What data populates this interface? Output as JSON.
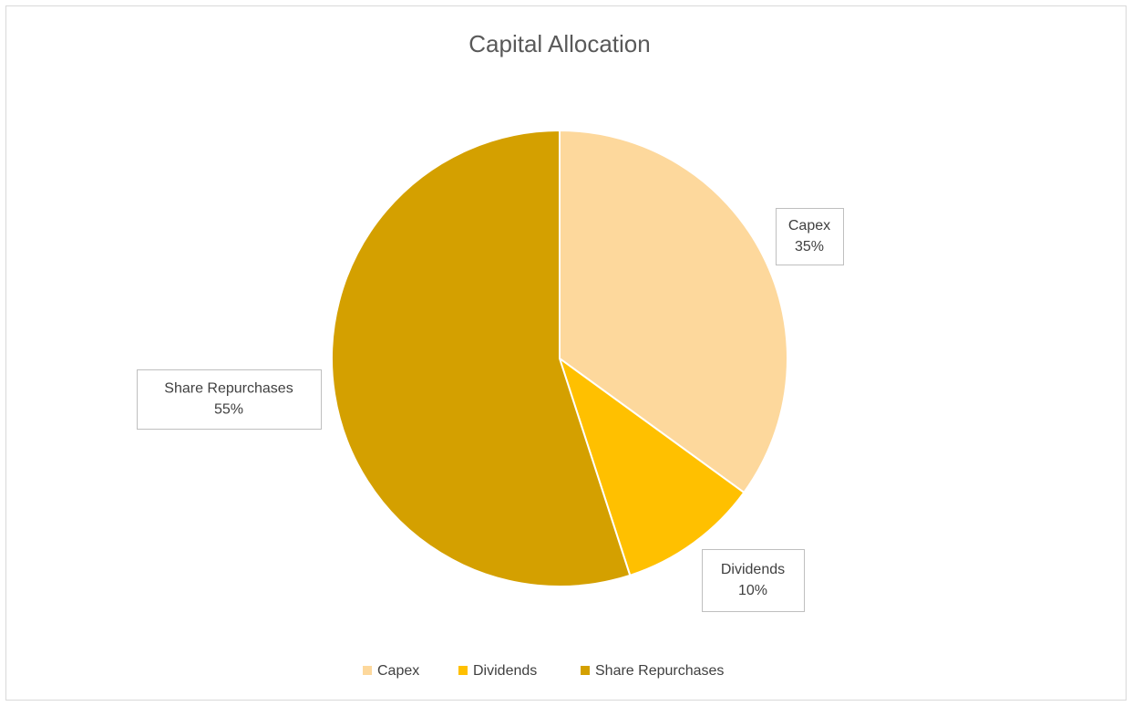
{
  "chart_data": {
    "type": "pie",
    "title": "Capital Allocation",
    "categories": [
      "Capex",
      "Dividends",
      "Share Repurchases"
    ],
    "values": [
      35,
      10,
      55
    ],
    "value_labels": [
      "35%",
      "10%",
      "55%"
    ],
    "colors": [
      "#fdd89c",
      "#ffc000",
      "#d4a000"
    ],
    "legend": "bottom"
  }
}
